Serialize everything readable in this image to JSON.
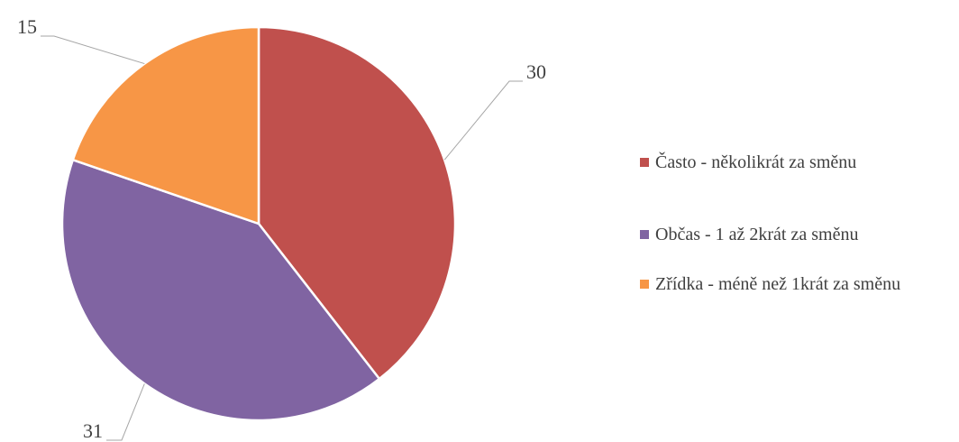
{
  "chart_data": {
    "type": "pie",
    "categories": [
      "Často - několikrát za směnu",
      "Občas - 1 až 2krát za směnu",
      "Zřídka - méně než 1krát za směnu"
    ],
    "values": [
      30,
      31,
      15
    ],
    "colors": [
      "#c0504d",
      "#8064a2",
      "#f79646"
    ],
    "legend": "right"
  }
}
